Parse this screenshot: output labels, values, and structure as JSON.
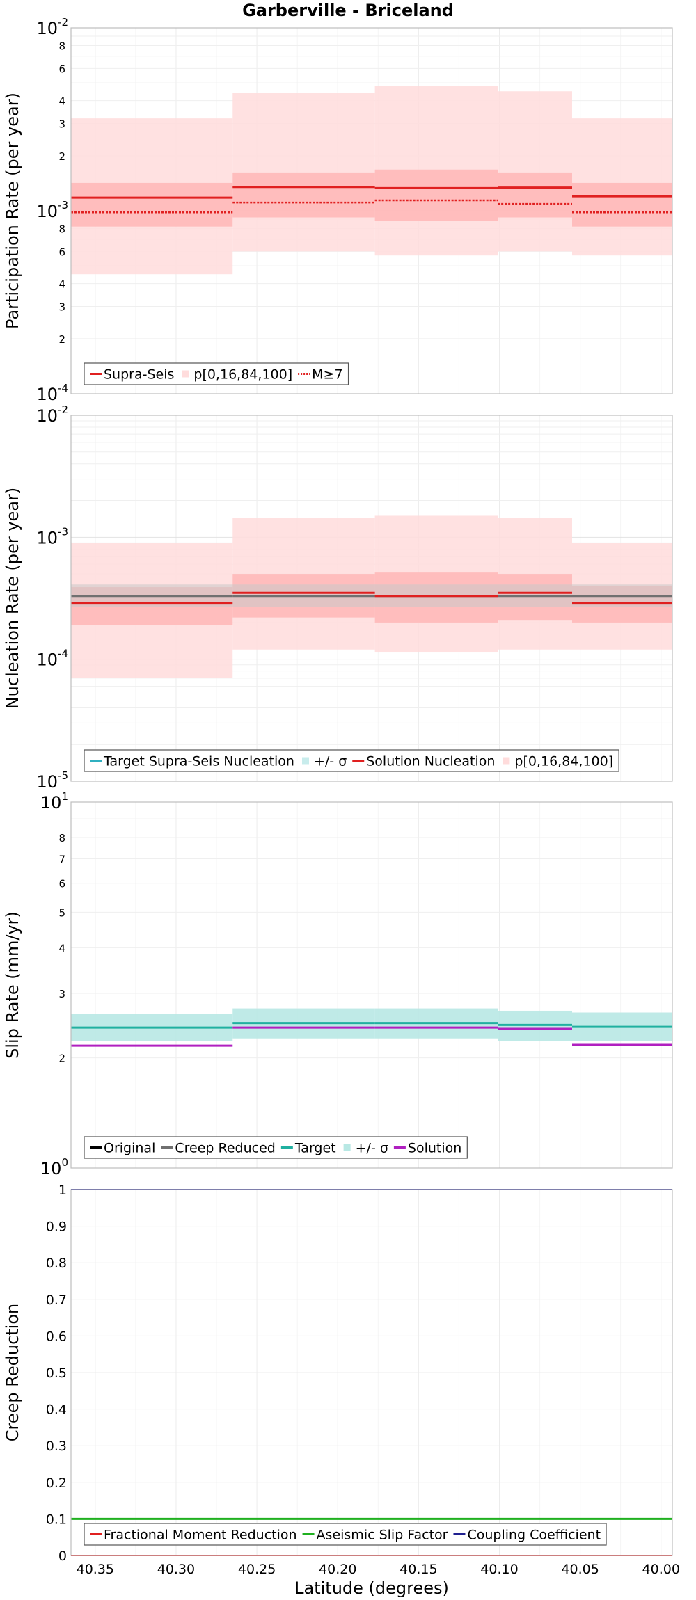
{
  "title": "Garberville - Briceland",
  "xlabel": "Latitude (degrees)",
  "x_ticks": [
    40.35,
    40.3,
    40.25,
    40.2,
    40.15,
    40.1,
    40.05,
    40.0
  ],
  "x_tick_labels": [
    "40.35",
    "40.30",
    "40.25",
    "40.20",
    "40.15",
    "40.10",
    "40.05",
    "40.00"
  ],
  "colors": {
    "supra": "#e02020",
    "band_outer": "#ffdcdc",
    "band_inner": "#ffb4b4",
    "target_gray": "#707070",
    "gray_band": "#c8c8c8",
    "teal": "#20b0a0",
    "teal_band": "#b8e8e4",
    "purple": "#b020c0",
    "green": "#20b020",
    "navy": "#202090",
    "black": "#000000"
  },
  "chart_data": [
    {
      "type": "line",
      "name": "participation",
      "ylabel": "Participation Rate (per year)",
      "yscale": "log",
      "ylim": [
        0.0001,
        0.01
      ],
      "xlim": [
        40.365,
        39.993
      ],
      "major_tick_labels": [
        {
          "base": "10",
          "exp": "-4",
          "value": 0.0001
        },
        {
          "base": "10",
          "exp": "-3",
          "value": 0.001
        },
        {
          "base": "10",
          "exp": "-2",
          "value": 0.01
        }
      ],
      "minor_tick_labels": [
        "2",
        "3",
        "4",
        "6",
        "8",
        "2",
        "3",
        "4",
        "6",
        "8"
      ],
      "minor_tick_values": [
        0.0002,
        0.0003,
        0.0004,
        0.0006,
        0.0008,
        0.002,
        0.003,
        0.004,
        0.006,
        0.008
      ],
      "segments": [
        {
          "x0": 40.365,
          "x1": 40.265,
          "supra": 0.00118,
          "m7": 0.00098,
          "p0": 0.00045,
          "p16": 0.00082,
          "p84": 0.00142,
          "p100": 0.0032
        },
        {
          "x0": 40.265,
          "x1": 40.177,
          "supra": 0.00135,
          "m7": 0.00111,
          "p0": 0.0006,
          "p16": 0.00092,
          "p84": 0.00162,
          "p100": 0.0044
        },
        {
          "x0": 40.177,
          "x1": 40.101,
          "supra": 0.00133,
          "m7": 0.00114,
          "p0": 0.00057,
          "p16": 0.00088,
          "p84": 0.00168,
          "p100": 0.0048
        },
        {
          "x0": 40.101,
          "x1": 40.055,
          "supra": 0.00134,
          "m7": 0.00109,
          "p0": 0.0006,
          "p16": 0.00092,
          "p84": 0.00162,
          "p100": 0.0045
        },
        {
          "x0": 40.055,
          "x1": 39.993,
          "supra": 0.0012,
          "m7": 0.00098,
          "p0": 0.00057,
          "p16": 0.00082,
          "p84": 0.00142,
          "p100": 0.0032
        }
      ],
      "legend": [
        "Supra-Seis",
        "p[0,16,84,100]",
        "M≥7"
      ]
    },
    {
      "type": "line",
      "name": "nucleation",
      "ylabel": "Nucleation Rate (per year)",
      "yscale": "log",
      "ylim": [
        1e-05,
        0.01
      ],
      "xlim": [
        40.365,
        39.993
      ],
      "major_tick_labels": [
        {
          "base": "10",
          "exp": "-5",
          "value": 1e-05
        },
        {
          "base": "10",
          "exp": "-4",
          "value": 0.0001
        },
        {
          "base": "10",
          "exp": "-3",
          "value": 0.001
        },
        {
          "base": "10",
          "exp": "-2",
          "value": 0.01
        }
      ],
      "segments": [
        {
          "x0": 40.365,
          "x1": 40.265,
          "target": 0.00033,
          "sig_lo": 0.00027,
          "sig_hi": 0.00041,
          "solution": 0.00029,
          "p0": 7e-05,
          "p16": 0.00019,
          "p84": 0.00039,
          "p100": 0.0009
        },
        {
          "x0": 40.265,
          "x1": 40.177,
          "target": 0.00033,
          "sig_lo": 0.00027,
          "sig_hi": 0.00041,
          "solution": 0.00035,
          "p0": 0.00012,
          "p16": 0.00022,
          "p84": 0.0005,
          "p100": 0.00145
        },
        {
          "x0": 40.177,
          "x1": 40.101,
          "target": 0.00033,
          "sig_lo": 0.00027,
          "sig_hi": 0.00041,
          "solution": 0.00033,
          "p0": 0.000115,
          "p16": 0.0002,
          "p84": 0.00052,
          "p100": 0.0015
        },
        {
          "x0": 40.101,
          "x1": 40.055,
          "target": 0.00033,
          "sig_lo": 0.00027,
          "sig_hi": 0.00041,
          "solution": 0.00035,
          "p0": 0.00012,
          "p16": 0.00021,
          "p84": 0.0005,
          "p100": 0.00145
        },
        {
          "x0": 40.055,
          "x1": 39.993,
          "target": 0.00033,
          "sig_lo": 0.00027,
          "sig_hi": 0.00041,
          "solution": 0.00029,
          "p0": 0.00012,
          "p16": 0.0002,
          "p84": 0.0004,
          "p100": 0.0009
        }
      ],
      "legend": [
        "Target Supra-Seis Nucleation",
        "+/- σ",
        "Solution Nucleation",
        "p[0,16,84,100]"
      ]
    },
    {
      "type": "line",
      "name": "slip",
      "ylabel": "Slip Rate (mm/yr)",
      "yscale": "log",
      "ylim": [
        1,
        10
      ],
      "xlim": [
        40.365,
        39.993
      ],
      "major_tick_labels": [
        {
          "base": "10",
          "exp": "0",
          "value": 1
        },
        {
          "base": "10",
          "exp": "1",
          "value": 10
        }
      ],
      "minor_tick_labels": [
        "2",
        "3",
        "4",
        "5",
        "6",
        "7",
        "8"
      ],
      "minor_tick_values": [
        2,
        3,
        4,
        5,
        6,
        7,
        8
      ],
      "segments": [
        {
          "x0": 40.365,
          "x1": 40.265,
          "target": 2.42,
          "sig_lo": 2.22,
          "sig_hi": 2.64,
          "solution": 2.16
        },
        {
          "x0": 40.265,
          "x1": 40.177,
          "target": 2.49,
          "sig_lo": 2.26,
          "sig_hi": 2.73,
          "solution": 2.42
        },
        {
          "x0": 40.177,
          "x1": 40.101,
          "target": 2.49,
          "sig_lo": 2.26,
          "sig_hi": 2.73,
          "solution": 2.42
        },
        {
          "x0": 40.101,
          "x1": 40.055,
          "target": 2.46,
          "sig_lo": 2.22,
          "sig_hi": 2.69,
          "solution": 2.4
        },
        {
          "x0": 40.055,
          "x1": 39.993,
          "target": 2.43,
          "sig_lo": 2.22,
          "sig_hi": 2.66,
          "solution": 2.17
        }
      ],
      "legend": [
        "Original",
        "Creep Reduced",
        "Target",
        "+/- σ",
        "Solution"
      ]
    },
    {
      "type": "line",
      "name": "creep",
      "ylabel": "Creep Reduction",
      "yscale": "linear",
      "ylim": [
        0,
        1
      ],
      "xlim": [
        40.365,
        39.993
      ],
      "y_ticks": [
        0,
        0.1,
        0.2,
        0.3,
        0.4,
        0.5,
        0.6,
        0.7,
        0.8,
        0.9,
        1
      ],
      "y_tick_labels": [
        "0",
        "0.1",
        "0.2",
        "0.3",
        "0.4",
        "0.5",
        "0.6",
        "0.7",
        "0.8",
        "0.9",
        "1"
      ],
      "series": [
        {
          "name": "Fractional Moment Reduction",
          "value": 0
        },
        {
          "name": "Aseismic Slip Factor",
          "value": 0.1
        },
        {
          "name": "Coupling Coefficient",
          "value": 1
        }
      ],
      "legend": [
        "Fractional Moment Reduction",
        "Aseismic Slip Factor",
        "Coupling Coefficient"
      ]
    }
  ]
}
